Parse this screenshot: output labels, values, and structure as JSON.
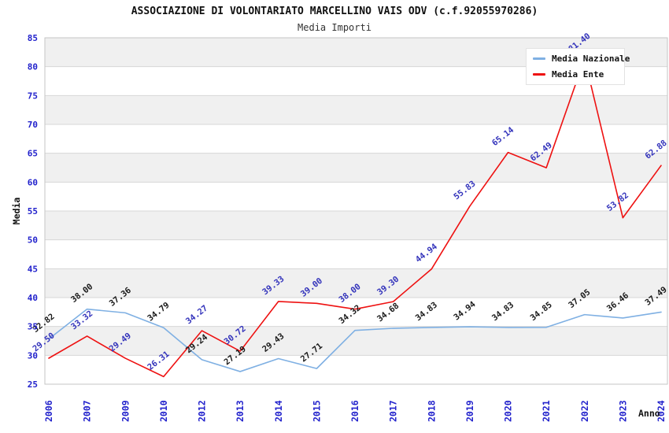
{
  "title": "ASSOCIAZIONE DI VOLONTARIATO MARCELLINO VAIS ODV (c.f.92055970286)",
  "subtitle": "Media Importi",
  "axes": {
    "y_title": "Media",
    "x_title": "Anno",
    "y_ticks": [
      85,
      80,
      75,
      70,
      65,
      60,
      55,
      50,
      45,
      40,
      35,
      30,
      25
    ],
    "tick_color": "#2222cc"
  },
  "legend": {
    "items": [
      {
        "label": "Media Nazionale",
        "color": "#7fb0e3"
      },
      {
        "label": "Media Ente",
        "color": "#ee1111"
      }
    ]
  },
  "colors": {
    "band_fill": "#f0f0f0",
    "gridline": "#d7d7d7",
    "plot_border": "#c6c6c6",
    "nazionale_line": "#7fb0e3",
    "ente_line": "#ee1111",
    "nazionale_label": "#1a1a1a",
    "ente_label": "#3333bb"
  },
  "chart_data": {
    "type": "line",
    "title": "Media Importi",
    "xlabel": "Anno",
    "ylabel": "Media",
    "ylim": [
      25,
      85
    ],
    "ytick_step": 5,
    "grid": true,
    "legend_position": "top-right",
    "categories": [
      "2006",
      "2007",
      "2009",
      "2010",
      "2012",
      "2013",
      "2014",
      "2015",
      "2016",
      "2017",
      "2018",
      "2019",
      "2020",
      "2021",
      "2022",
      "2023",
      "2024"
    ],
    "series": [
      {
        "name": "Media Nazionale",
        "color": "#7fb0e3",
        "label_color": "#1a1a1a",
        "values": [
          32.82,
          38.0,
          37.36,
          34.79,
          29.24,
          27.19,
          29.43,
          27.71,
          34.32,
          34.68,
          34.83,
          34.94,
          34.83,
          34.85,
          37.05,
          36.46,
          37.49
        ]
      },
      {
        "name": "Media Ente",
        "color": "#ee1111",
        "label_color": "#3333bb",
        "values": [
          29.5,
          33.32,
          29.49,
          26.31,
          34.27,
          30.72,
          39.33,
          39.0,
          38.0,
          39.3,
          44.94,
          55.83,
          65.14,
          62.49,
          81.4,
          53.82,
          62.88
        ]
      }
    ]
  }
}
